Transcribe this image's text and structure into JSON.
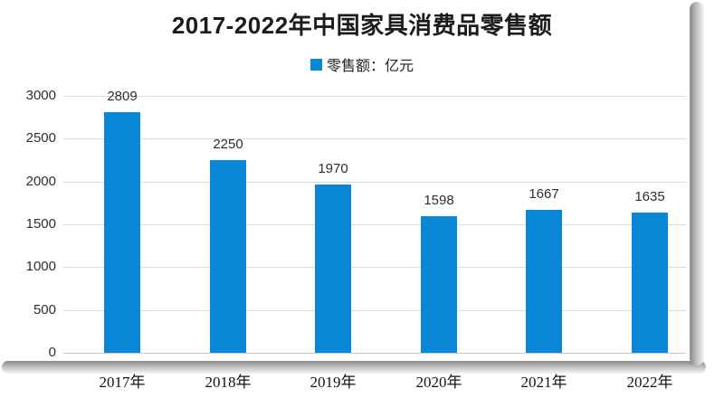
{
  "title": "2017-2022年中国家具消费品零售额",
  "legend": {
    "label": "零售额：亿元",
    "marker_color": "#0a86d6"
  },
  "chart_data": {
    "type": "bar",
    "title": "2017-2022年中国家具消费品零售额",
    "categories": [
      "2017年",
      "2018年",
      "2019年",
      "2020年",
      "2021年",
      "2022年"
    ],
    "values": [
      2809,
      2250,
      1970,
      1598,
      1667,
      1635
    ],
    "series_name": "零售额",
    "unit": "亿元",
    "xlabel": "",
    "ylabel": "零售额：亿元",
    "ylim": [
      0,
      3000
    ],
    "yticks": [
      0,
      500,
      1000,
      1500,
      2000,
      2500,
      3000
    ],
    "grid": true,
    "legend_position": "top-center",
    "value_labels": true,
    "bar_color": "#0a86d6"
  },
  "colors": {
    "bar": "#0a86d6",
    "grid_line": "#dcdcdc",
    "axis_line": "#c9c9c9",
    "title_text": "#1c1c1c",
    "label_text": "#2e2e2e"
  }
}
